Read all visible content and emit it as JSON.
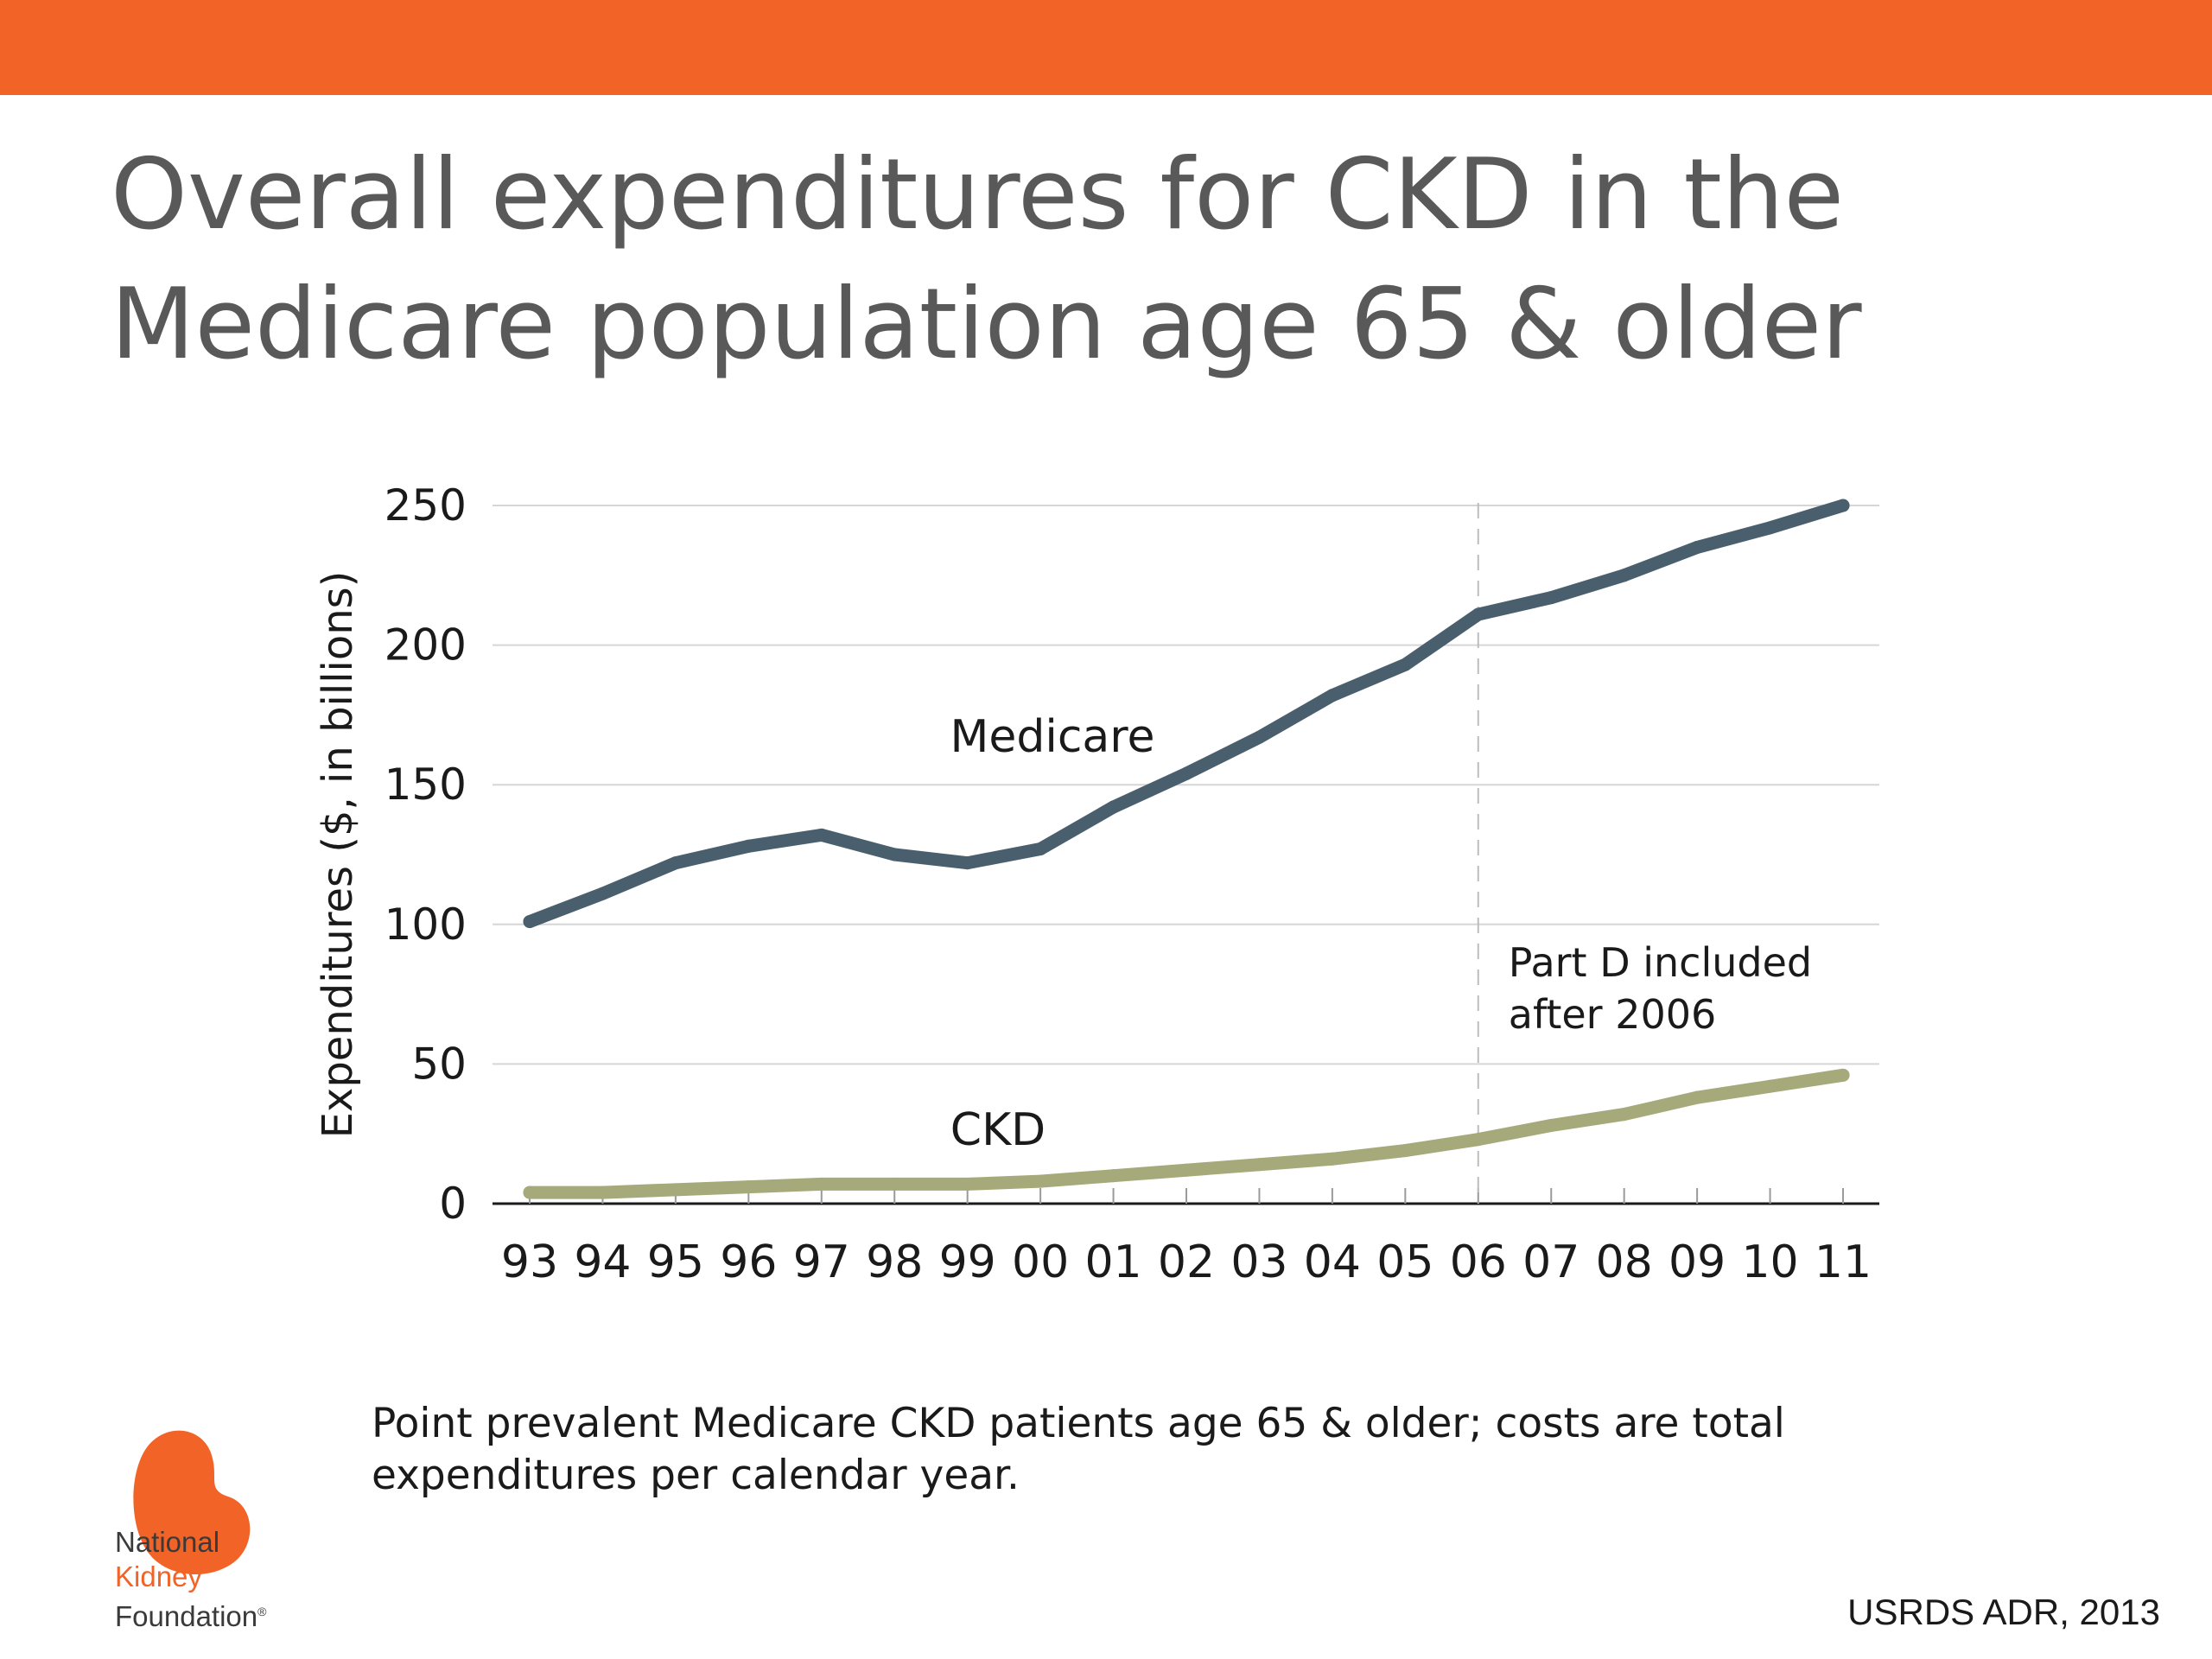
{
  "slide": {
    "title_line1": "Overall expenditures for CKD in the",
    "title_line2": "Medicare population age 65 & older",
    "footnote_line1": "Point prevalent Medicare CKD patients age 65 & older; costs are total",
    "footnote_line2": "expenditures per calendar year.",
    "source": "USRDS ADR, 2013",
    "accent_color": "#F26327"
  },
  "logo": {
    "line1": "National",
    "line2": "Kidney",
    "line3": "Foundation",
    "mark": "®",
    "icon": "kidney-icon"
  },
  "chart_data": {
    "type": "line",
    "x": [
      "93",
      "94",
      "95",
      "96",
      "97",
      "98",
      "99",
      "00",
      "01",
      "02",
      "03",
      "04",
      "05",
      "06",
      "07",
      "08",
      "09",
      "10",
      "11"
    ],
    "ylabel": "Expenditures ($, in billions)",
    "xlabel": "",
    "ylim": [
      0,
      250
    ],
    "yticks": [
      0,
      50,
      100,
      150,
      200,
      250
    ],
    "grid": true,
    "series": [
      {
        "name": "Medicare",
        "color": "#4A5F6E",
        "values": [
          101,
          111,
          122,
          128,
          132,
          125,
          122,
          127,
          142,
          154,
          167,
          182,
          193,
          211,
          217,
          225,
          235,
          242,
          250
        ]
      },
      {
        "name": "CKD",
        "color": "#A6A97A",
        "values": [
          4,
          4,
          5,
          6,
          7,
          7,
          7,
          8,
          10,
          12,
          14,
          16,
          19,
          23,
          28,
          32,
          38,
          42,
          46
        ]
      }
    ],
    "annotation": {
      "at_x": "06",
      "line1": "Part D included",
      "line2": "after 2006"
    }
  }
}
